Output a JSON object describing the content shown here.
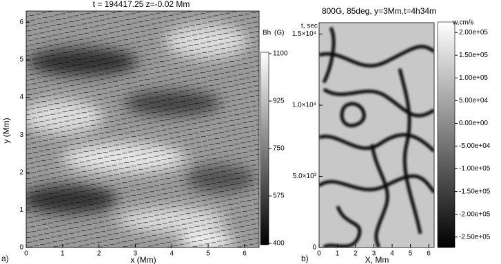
{
  "chart_data": [
    {
      "type": "heatmap",
      "title": "t = 194417.25  z=-0.02 Mm",
      "panel_label": "a)",
      "x_label": "x (Mm)",
      "y_label": "y (Mm)",
      "xlim": [
        0,
        6.4
      ],
      "xticks": [
        0,
        1,
        2,
        3,
        4,
        5,
        6
      ],
      "ylim": [
        0,
        6.3
      ],
      "yticks": [
        0,
        1,
        2,
        3,
        4,
        5,
        6
      ],
      "colorbar_label": "Bh",
      "colorbar_unit": "(G)",
      "zlim": [
        400,
        1100
      ],
      "zticks": [
        400,
        575,
        750,
        925,
        1100
      ]
    },
    {
      "type": "heatmap",
      "title": "800G, 85deg, y=3Mm,t=4h34m",
      "panel_label": "b)",
      "x_label": "X, Mm",
      "y_label": "t, sec",
      "xlim": [
        0,
        6.3
      ],
      "xticks": [
        0,
        1,
        2,
        3,
        4,
        5,
        6
      ],
      "ylim": [
        0,
        15800
      ],
      "yticks": [
        0,
        {
          "value": 5000,
          "label": "5.0×10³"
        },
        {
          "value": 10000,
          "label": "1.0×10⁴"
        },
        {
          "value": 15000,
          "label": "1.5×10⁴"
        }
      ],
      "colorbar_label": "w,cm/s",
      "zlim": [
        -273000,
        223000
      ],
      "zticks": [
        {
          "value": 200000,
          "label": "2.00e+05"
        },
        {
          "value": 150000,
          "label": "1.50e+05"
        },
        {
          "value": 100000,
          "label": "1.00e+05"
        },
        {
          "value": 50000,
          "label": "5.00e+04"
        },
        {
          "value": 0,
          "label": "0.00e+00"
        },
        {
          "value": -50000,
          "label": "-5.00e+04"
        },
        {
          "value": -100000,
          "label": "-1.00e+05"
        },
        {
          "value": -150000,
          "label": "-1.50e+05"
        },
        {
          "value": -200000,
          "label": "-2.00e+05"
        },
        {
          "value": -250000,
          "label": "-2.50e+05"
        }
      ]
    }
  ]
}
